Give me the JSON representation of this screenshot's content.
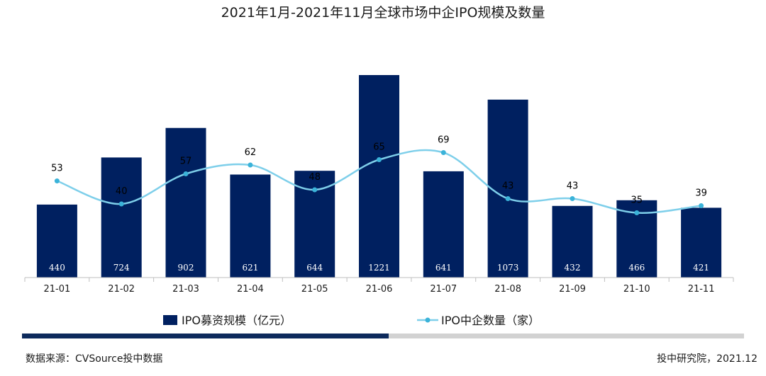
{
  "chart_data": {
    "type": "bar",
    "title": "2021年1月-2021年11月全球市场中企IPO规模及数量",
    "categories": [
      "21-01",
      "21-02",
      "21-03",
      "21-04",
      "21-05",
      "21-06",
      "21-07",
      "21-08",
      "21-09",
      "21-10",
      "21-11"
    ],
    "series": [
      {
        "name": "IPO募资规模（亿元）",
        "type": "bar",
        "axis": "primary",
        "values": [
          440,
          724,
          902,
          621,
          644,
          1221,
          641,
          1073,
          432,
          466,
          421
        ]
      },
      {
        "name": "IPO中企数量（家）",
        "type": "line",
        "axis": "secondary",
        "values": [
          53,
          40,
          57,
          62,
          48,
          65,
          69,
          43,
          43,
          35,
          39
        ]
      }
    ],
    "colors": {
      "bar": "#002060",
      "line": "#7ECFEA",
      "progress_done": "#0D2A5C",
      "progress_rest": "#D2D2D2"
    },
    "legend_position": "bottom",
    "grid": false
  },
  "footer": {
    "source": "数据来源：CVSource投中数据",
    "credit": "投中研究院，2021.12"
  }
}
